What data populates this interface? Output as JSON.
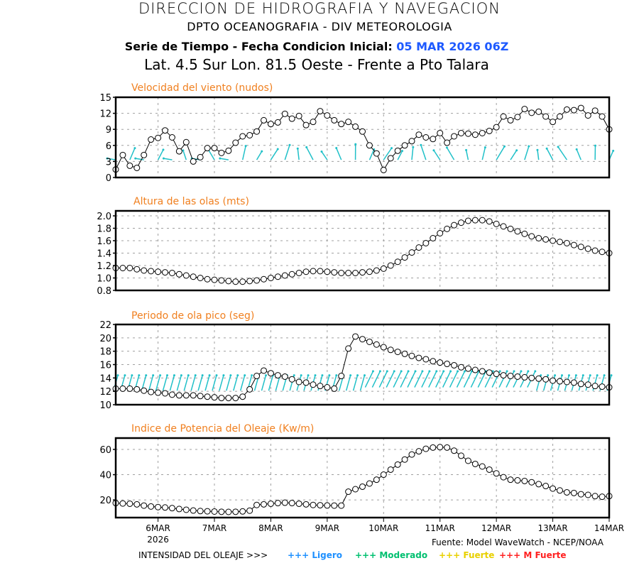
{
  "header": {
    "line1": "DIRECCION DE HIDROGRAFIA Y NAVEGACION",
    "line2": "DPTO OCEANOGRAFIA - DIV METEOROLOGIA",
    "line3_prefix": "Serie de Tiempo - Fecha Condicion Inicial: ",
    "line3_date": "05 MAR 2026 06Z",
    "line4": "Lat. 4.5 Sur  Lon. 81.5 Oeste - Frente a Pto Talara"
  },
  "footer": {
    "year": "2026",
    "source": "Fuente: Model WaveWatch - NCEP/NOAA",
    "legend_label": "INTENSIDAD DEL OLEAJE >>>",
    "legend": [
      {
        "label": "+++ Ligero",
        "color": "#1e90ff"
      },
      {
        "label": "+++ Moderado",
        "color": "#00c070"
      },
      {
        "label": "+++ Fuerte",
        "color": "#e8d000"
      },
      {
        "label": "+++ M Fuerte",
        "color": "#ff2020"
      }
    ]
  },
  "colors": {
    "title": "#f08020",
    "arrows": "#20c0c8",
    "line": "#000000",
    "grid": "#a0a0a0"
  },
  "chart_data": [
    {
      "type": "line",
      "title": "Velocidad del viento (nudos)",
      "ylim": [
        0,
        15
      ],
      "yticks": [
        0,
        3,
        6,
        9,
        12,
        15
      ],
      "xlabels": [
        "6MAR",
        "7MAR",
        "8MAR",
        "9MAR",
        "10MAR",
        "11MAR",
        "12MAR",
        "13MAR",
        "14MAR"
      ],
      "x_start": "05 MAR 2026 06Z",
      "x_step_hours": 3,
      "grid": true,
      "has_direction_arrows": true,
      "values": [
        1.5,
        4.2,
        2.2,
        1.8,
        4.2,
        7.1,
        7.4,
        8.8,
        7.5,
        4.9,
        6.6,
        3.0,
        3.8,
        5.5,
        5.5,
        4.6,
        5.0,
        6.5,
        7.7,
        7.9,
        8.6,
        10.7,
        10.0,
        10.3,
        11.9,
        11.0,
        11.5,
        9.8,
        10.4,
        12.4,
        11.6,
        10.7,
        10.0,
        10.4,
        9.5,
        8.6,
        6.0,
        4.5,
        1.4,
        3.6,
        5.0,
        6.0,
        6.8,
        8.0,
        7.5,
        7.2,
        8.3,
        6.5,
        7.7,
        8.3,
        8.2,
        8.0,
        8.3,
        8.7,
        9.4,
        11.4,
        10.7,
        11.3,
        12.8,
        12.1,
        12.3,
        11.4,
        10.4,
        11.4,
        12.7,
        12.6,
        13.0,
        11.6,
        12.5,
        11.4,
        9.0
      ]
    },
    {
      "type": "line",
      "title": "Altura de las olas (mts)",
      "ylim": [
        0.8,
        2.08
      ],
      "yticks": [
        0.8,
        1.0,
        1.2,
        1.4,
        1.6,
        1.8,
        2.0
      ],
      "grid": true,
      "values": [
        1.16,
        1.16,
        1.16,
        1.14,
        1.12,
        1.11,
        1.1,
        1.09,
        1.08,
        1.06,
        1.04,
        1.02,
        1.0,
        0.98,
        0.97,
        0.96,
        0.95,
        0.94,
        0.94,
        0.95,
        0.96,
        0.98,
        1.0,
        1.02,
        1.04,
        1.06,
        1.08,
        1.1,
        1.11,
        1.11,
        1.1,
        1.09,
        1.08,
        1.08,
        1.08,
        1.09,
        1.1,
        1.12,
        1.15,
        1.2,
        1.26,
        1.33,
        1.41,
        1.49,
        1.56,
        1.64,
        1.72,
        1.79,
        1.85,
        1.89,
        1.92,
        1.93,
        1.93,
        1.91,
        1.87,
        1.83,
        1.79,
        1.75,
        1.71,
        1.67,
        1.64,
        1.62,
        1.6,
        1.58,
        1.56,
        1.53,
        1.5,
        1.47,
        1.44,
        1.42,
        1.4
      ]
    },
    {
      "type": "line",
      "title": "Periodo de ola pico (seg)",
      "ylim": [
        10,
        22
      ],
      "yticks": [
        10,
        12,
        14,
        16,
        18,
        20,
        22
      ],
      "grid": true,
      "has_direction_arrows": true,
      "values": [
        12.4,
        12.4,
        12.4,
        12.3,
        12.1,
        11.9,
        11.8,
        11.7,
        11.5,
        11.4,
        11.4,
        11.4,
        11.3,
        11.2,
        11.1,
        11.0,
        11.0,
        11.0,
        11.2,
        12.3,
        14.3,
        15.1,
        14.7,
        14.4,
        14.2,
        13.8,
        13.4,
        13.3,
        13.0,
        12.8,
        12.6,
        12.4,
        14.3,
        18.4,
        20.2,
        19.8,
        19.4,
        19.0,
        18.6,
        18.2,
        17.9,
        17.6,
        17.3,
        17.0,
        16.8,
        16.5,
        16.3,
        16.1,
        15.9,
        15.6,
        15.4,
        15.2,
        15.0,
        14.8,
        14.6,
        14.4,
        14.3,
        14.2,
        14.1,
        14.0,
        13.9,
        13.8,
        13.6,
        13.5,
        13.4,
        13.3,
        13.1,
        13.0,
        12.8,
        12.7,
        12.6
      ]
    },
    {
      "type": "line",
      "title": "Indice de Potencia del Oleaje (Kw/m)",
      "ylim": [
        6,
        69
      ],
      "yticks": [
        20,
        40,
        60
      ],
      "grid": true,
      "values": [
        17.5,
        17.2,
        17.0,
        16.5,
        15.5,
        14.8,
        14.3,
        14.0,
        13.5,
        12.8,
        12.2,
        11.6,
        11.2,
        11.0,
        10.8,
        10.6,
        10.5,
        10.6,
        10.9,
        11.5,
        16.0,
        16.5,
        17.0,
        17.5,
        17.8,
        17.5,
        17.0,
        16.5,
        16.0,
        15.8,
        15.6,
        15.5,
        15.5,
        26.5,
        28.5,
        30.5,
        33.0,
        36.0,
        40.0,
        44.0,
        48.0,
        52.0,
        56.0,
        58.5,
        60.5,
        61.5,
        61.8,
        61.5,
        59.0,
        55.0,
        51.0,
        48.5,
        46.5,
        44.0,
        41.0,
        38.0,
        36.0,
        35.5,
        35.0,
        34.0,
        32.5,
        31.0,
        29.0,
        27.5,
        26.0,
        25.5,
        24.5,
        24.0,
        23.0,
        22.5,
        23.0
      ]
    }
  ]
}
